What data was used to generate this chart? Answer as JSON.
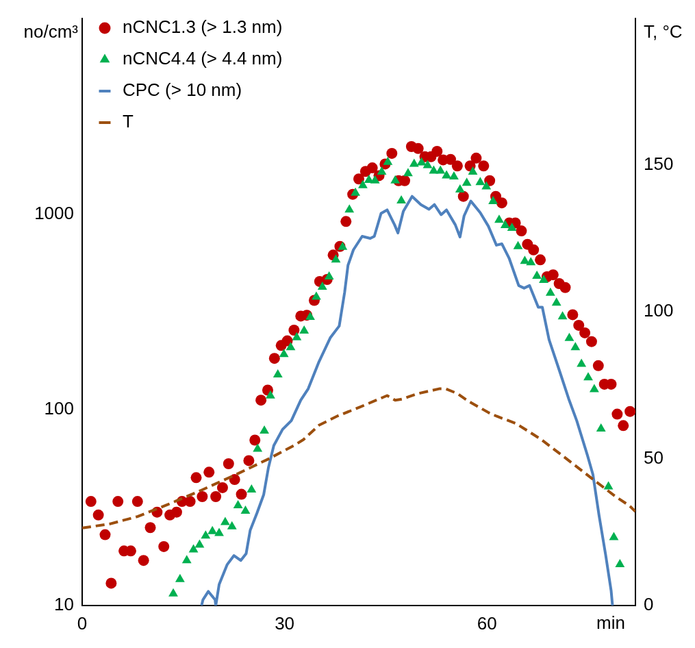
{
  "chart_data": {
    "type": "line",
    "xlabel": "min",
    "ylabel": "no/cm³",
    "y2label": "T, °C",
    "xlim": [
      0,
      82
    ],
    "xticks": [
      0,
      30,
      60
    ],
    "ylim": [
      10,
      10000
    ],
    "yticks": [
      10,
      100,
      1000
    ],
    "y2lim": [
      0,
      200
    ],
    "y2ticks": [
      0,
      50,
      100,
      150
    ],
    "log": "y",
    "grid": false,
    "legend": "top left",
    "series": [
      {
        "name": "nCNC1.3 (> 1.3 nm)",
        "type": "scatter",
        "marker": "circle",
        "color": "#c00000",
        "x": [
          1.3,
          2.4,
          3.4,
          4.3,
          5.3,
          6.2,
          7.2,
          8.2,
          9.1,
          10.1,
          11.1,
          12.1,
          13.0,
          14.0,
          14.8,
          16.0,
          16.9,
          17.8,
          18.8,
          19.8,
          20.8,
          21.7,
          22.6,
          23.6,
          24.7,
          25.6,
          26.5,
          27.5,
          28.5,
          29.5,
          30.4,
          31.4,
          32.4,
          33.3,
          34.4,
          35.2,
          36.3,
          37.2,
          38.2,
          39.1,
          40.1,
          41.0,
          42.0,
          43.0,
          44.0,
          44.9,
          45.9,
          46.9,
          47.8,
          48.8,
          49.8,
          50.8,
          51.7,
          52.6,
          53.5,
          54.6,
          55.6,
          56.5,
          57.5,
          58.4,
          59.5,
          60.4,
          61.3,
          62.2,
          63.3,
          64.2,
          65.1,
          66.0,
          66.9,
          67.9,
          68.9,
          69.8,
          70.7,
          71.6,
          72.7,
          73.6,
          74.5,
          75.5,
          76.5,
          77.4,
          78.4,
          79.3,
          80.2,
          81.2
        ],
        "values": [
          34,
          29,
          23,
          13,
          34,
          19,
          19,
          34,
          17,
          25,
          30,
          20,
          29,
          30,
          34,
          34,
          45,
          36,
          48,
          36,
          40,
          53,
          44,
          37,
          55,
          70,
          112,
          126,
          183,
          213,
          225,
          255,
          301,
          304,
          362,
          452,
          463,
          617,
          683,
          916,
          1260,
          1510,
          1650,
          1720,
          1570,
          1800,
          2040,
          1480,
          1480,
          2210,
          2160,
          1960,
          1960,
          2090,
          1890,
          1900,
          1760,
          1230,
          1760,
          1930,
          1760,
          1480,
          1230,
          1140,
          900,
          900,
          820,
          700,
          656,
          583,
          478,
          489,
          441,
          421,
          306,
          270,
          247,
          223,
          168,
          135,
          135,
          95,
          83,
          98
        ]
      },
      {
        "name": "nCNC4.4 (> 4.4 nm)",
        "type": "scatter",
        "marker": "triangle",
        "color": "#00b050",
        "x": [
          13.5,
          14.5,
          15.5,
          16.5,
          17.4,
          18.3,
          19.3,
          20.3,
          21.2,
          22.2,
          23.1,
          24.2,
          25.1,
          26.0,
          27.0,
          27.9,
          29.0,
          29.9,
          30.9,
          31.8,
          32.9,
          33.8,
          34.7,
          35.6,
          36.6,
          37.6,
          38.6,
          39.6,
          40.5,
          41.6,
          42.5,
          43.4,
          44.4,
          45.3,
          46.4,
          47.3,
          48.3,
          49.2,
          50.3,
          51.2,
          52.1,
          53.1,
          54.0,
          55.1,
          56.0,
          57.0,
          57.9,
          59.0,
          59.9,
          60.9,
          61.8,
          62.7,
          63.7,
          64.6,
          65.6,
          66.5,
          67.4,
          68.4,
          69.4,
          70.3,
          71.2,
          72.2,
          73.1,
          74.0,
          75.0,
          75.9,
          76.9,
          78.0,
          78.8,
          79.7
        ],
        "values": [
          11.5,
          13.6,
          17,
          19.3,
          20.4,
          22.7,
          23.9,
          23.4,
          26.6,
          25.3,
          32.4,
          30.4,
          39,
          63,
          78,
          118,
          151,
          192,
          208,
          234,
          253,
          297,
          377,
          424,
          478,
          583,
          678,
          1050,
          1280,
          1400,
          1490,
          1480,
          1640,
          1840,
          1480,
          1170,
          1610,
          1800,
          1830,
          1770,
          1660,
          1660,
          1570,
          1550,
          1330,
          1440,
          1640,
          1450,
          1380,
          1160,
          931,
          874,
          847,
          683,
          574,
          565,
          482,
          459,
          395,
          351,
          299,
          232,
          208,
          171,
          146,
          127,
          80,
          40.5,
          22.3,
          16.2
        ]
      },
      {
        "name": "CPC (> 10 nm)",
        "type": "line",
        "marker": "none",
        "line_style": "solid",
        "color": "#4f81bd",
        "x": [
          17.7,
          17.9,
          18.7,
          19.7,
          19.8,
          20.3,
          21.5,
          22.5,
          23.5,
          24.3,
          24.9,
          25.9,
          26.9,
          27.6,
          28.4,
          29.7,
          31.0,
          32.4,
          33.5,
          35.1,
          36.8,
          38.1,
          38.9,
          39.4,
          40.2,
          41.5,
          42.7,
          43.3,
          44.3,
          45.2,
          46.3,
          46.8,
          47.6,
          48.9,
          50.2,
          51.4,
          52.2,
          53.2,
          54.0,
          55.3,
          56.0,
          56.6,
          57.6,
          59.0,
          60.2,
          61.4,
          62.2,
          63.3,
          64.7,
          65.5,
          66.3,
          67.6,
          68.2,
          69.2,
          70.8,
          72.1,
          73.3,
          74.9,
          75.7,
          76.6,
          77.6,
          78.4,
          78.6
        ],
        "values": [
          10,
          10.7,
          11.8,
          10.7,
          10,
          12.8,
          16.2,
          18,
          17,
          18.4,
          24.2,
          29.6,
          36.8,
          50.5,
          65.6,
          79.4,
          88,
          112,
          128,
          176,
          234,
          268,
          398,
          547,
          656,
          769,
          751,
          769,
          1007,
          1049,
          881,
          800,
          1032,
          1230,
          1117,
          1057,
          1117,
          992,
          1049,
          881,
          763,
          977,
          1164,
          1016,
          867,
          693,
          704,
          592,
          431,
          418,
          431,
          334,
          334,
          228,
          156,
          114,
          88,
          58.3,
          46.7,
          29,
          18,
          11.9,
          10
        ]
      },
      {
        "name": "T",
        "type": "line",
        "axis": "y2",
        "marker": "none",
        "line_style": "dashed",
        "color": "#9c4f0e",
        "x": [
          0,
          4.1,
          8.2,
          12.6,
          17.7,
          22.8,
          27.6,
          31.4,
          32.8,
          35.1,
          37.9,
          41.2,
          45.2,
          46.4,
          47.4,
          49.8,
          52.9,
          53.9,
          55.6,
          57.3,
          60.4,
          61.4,
          64.3,
          68.0,
          71.2,
          75.3,
          79.0,
          81.1,
          82
        ],
        "values": [
          26.4,
          27.8,
          30.3,
          34.3,
          39.3,
          44.6,
          49.9,
          54.5,
          56.5,
          61.4,
          64.6,
          67.6,
          71.5,
          69.9,
          70.3,
          72.2,
          73.8,
          73.8,
          72.2,
          69.5,
          65.5,
          64.5,
          62,
          56.6,
          51,
          43.7,
          37.2,
          34,
          32
        ]
      }
    ]
  }
}
